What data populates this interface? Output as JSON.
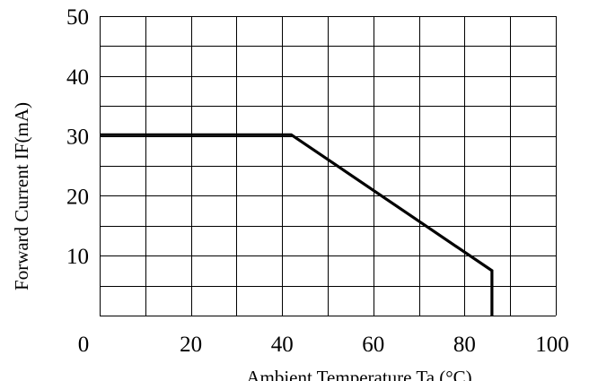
{
  "chart_data": {
    "type": "line",
    "title": "",
    "xlabel": "Ambient Temperature Ta (°C)",
    "ylabel": "Forward Current IF(mA)",
    "xlim": [
      0,
      100
    ],
    "ylim": [
      0,
      50
    ],
    "x_ticks": [
      "0",
      "20",
      "40",
      "60",
      "80",
      "100"
    ],
    "y_ticks": [
      "10",
      "20",
      "30",
      "40",
      "50"
    ],
    "grid": true,
    "x_grid_step": 10,
    "y_grid_step": 5,
    "series": [
      {
        "x": [
          0,
          42,
          86,
          86
        ],
        "y": [
          30.2,
          30.2,
          7.5,
          0
        ]
      }
    ]
  }
}
